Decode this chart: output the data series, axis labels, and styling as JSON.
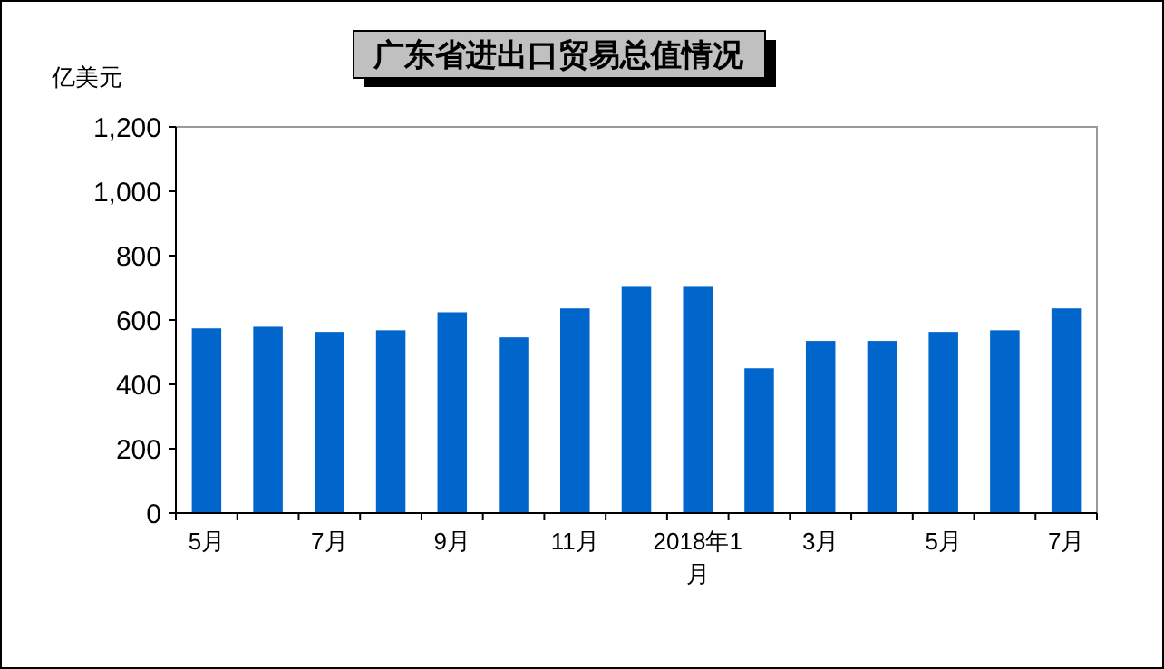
{
  "chart_data": {
    "type": "bar",
    "title": "广东省进出口贸易总值情况",
    "ylabel": "亿美元",
    "categories": [
      "5月",
      null,
      "7月",
      null,
      "9月",
      null,
      "11月",
      null,
      "2018年1月",
      null,
      "3月",
      null,
      "5月",
      null,
      "7月"
    ],
    "values": [
      574,
      579,
      563,
      568,
      624,
      546,
      636,
      703,
      703,
      450,
      535,
      535,
      563,
      568,
      636
    ],
    "color": "#0066cc",
    "ylim": [
      0,
      1200
    ],
    "yticks": [
      0,
      {
        "value": 200,
        "label": "200"
      },
      400,
      600,
      800,
      {
        "value": 1000,
        "label": "1,000"
      },
      {
        "value": 1200,
        "label": "1,200"
      }
    ],
    "grid": false
  }
}
